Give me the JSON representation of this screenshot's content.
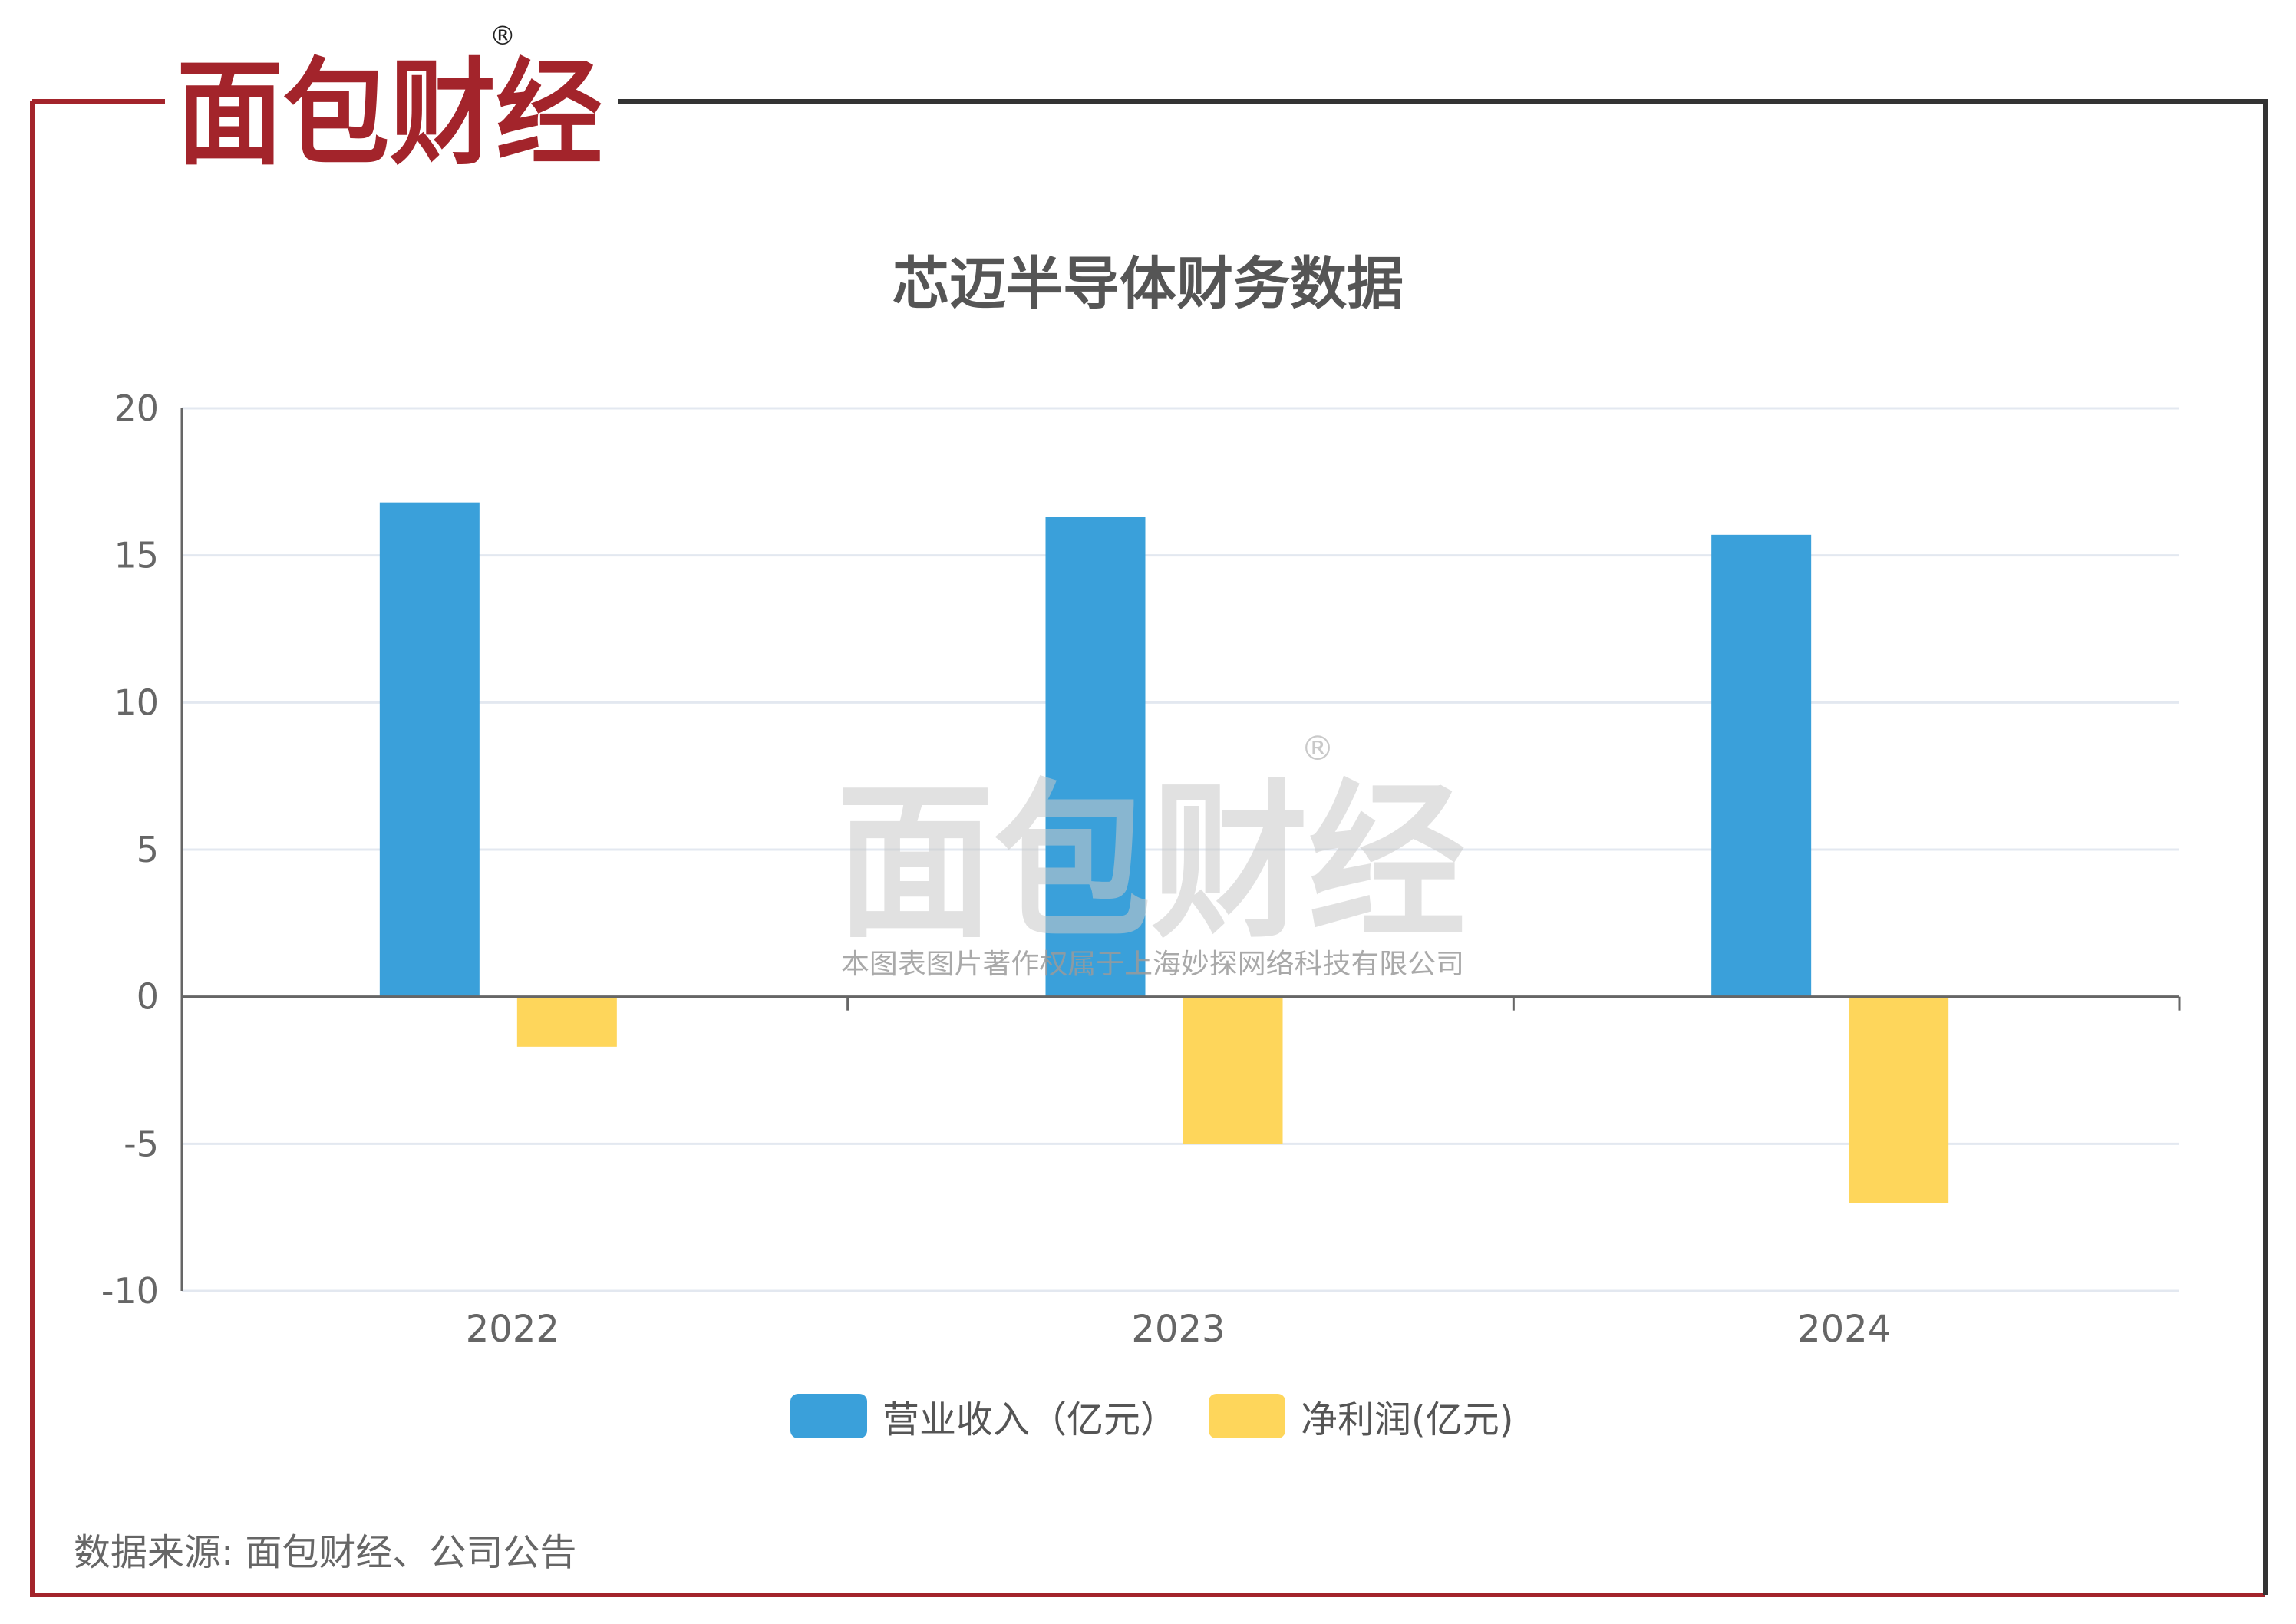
{
  "brand": {
    "logo_text": "面包财经",
    "registered_mark": "®",
    "watermark_caption": "本图表图片著作权属于上海妙探网络科技有限公司",
    "colors": {
      "red": "#a3242b",
      "frame_dark": "#333333"
    }
  },
  "source_note": "数据来源: 面包财经、公司公告",
  "chart_data": {
    "type": "bar",
    "title": "芯迈半导体财务数据",
    "categories": [
      "2022",
      "2023",
      "2024"
    ],
    "ylim": [
      -10,
      20
    ],
    "yticks": [
      20,
      15,
      10,
      5,
      0,
      -5,
      -10
    ],
    "grid": true,
    "legend_position": "bottom",
    "series": [
      {
        "name": "营业收入（亿元）",
        "color": "#3aa0da",
        "values": [
          16.8,
          16.3,
          15.7
        ]
      },
      {
        "name": "净利润(亿元)",
        "color": "#fed65b",
        "values": [
          -1.7,
          -5.0,
          -7.0
        ]
      }
    ]
  }
}
